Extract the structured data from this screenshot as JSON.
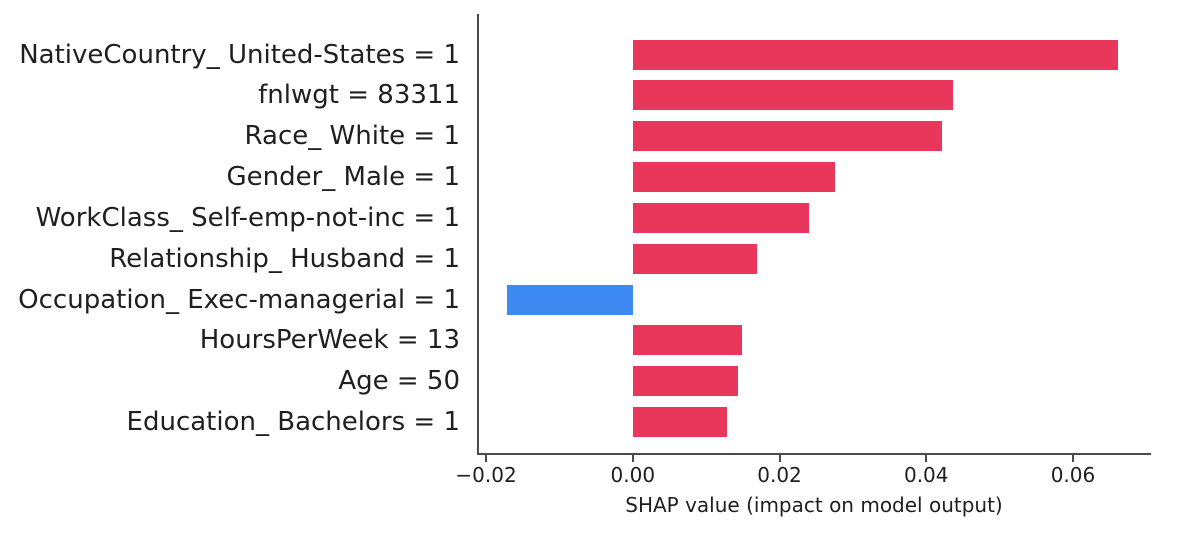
{
  "figure": {
    "background_color": "#ffffff",
    "text_color": "#1f1f1f",
    "axis_line_color": "#4a4a4a"
  },
  "chart_data": {
    "type": "bar",
    "orientation": "horizontal",
    "title": "",
    "xlabel": "SHAP value (impact on model output)",
    "ylabel": "",
    "categories": [
      "NativeCountry_ United-States = 1",
      "fnlwgt = 83311",
      "Race_ White = 1",
      "Gender_ Male = 1",
      "WorkClass_ Self-emp-not-inc = 1",
      "Relationship_ Husband = 1",
      "Occupation_ Exec-managerial = 1",
      "HoursPerWeek = 13",
      "Age = 50",
      "Education_ Bachelors = 1"
    ],
    "values": [
      0.0662,
      0.0437,
      0.0422,
      0.0275,
      0.024,
      0.0169,
      -0.0171,
      0.0149,
      0.0143,
      0.0128
    ],
    "xlim": [
      -0.0211,
      0.0705
    ],
    "xticks": [
      -0.02,
      0.0,
      0.02,
      0.04,
      0.06
    ],
    "xtick_labels": [
      "−0.02",
      "0.00",
      "0.02",
      "0.04",
      "0.06"
    ],
    "positive_color": "#e8375a",
    "negative_color": "#3d8bf2",
    "grid": false,
    "legend": false
  }
}
